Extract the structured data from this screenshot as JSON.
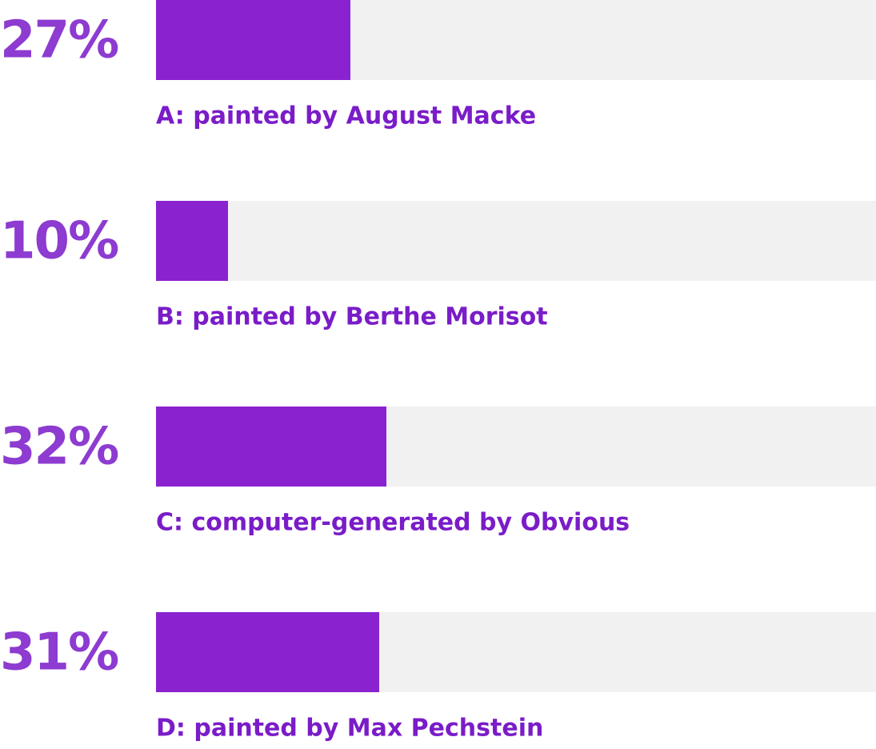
{
  "chart_data": {
    "type": "hbar",
    "categories": [
      "A: painted by August Macke",
      "B: painted by Berthe Morisot",
      "C: computer-generated by Obvious",
      "D: painted by Max Pechstein"
    ],
    "values": [
      27,
      10,
      32,
      31
    ],
    "value_labels": [
      "27%",
      "10%",
      "32%",
      "31%"
    ],
    "color": "#8a22cf",
    "xlim": [
      0,
      100
    ]
  }
}
